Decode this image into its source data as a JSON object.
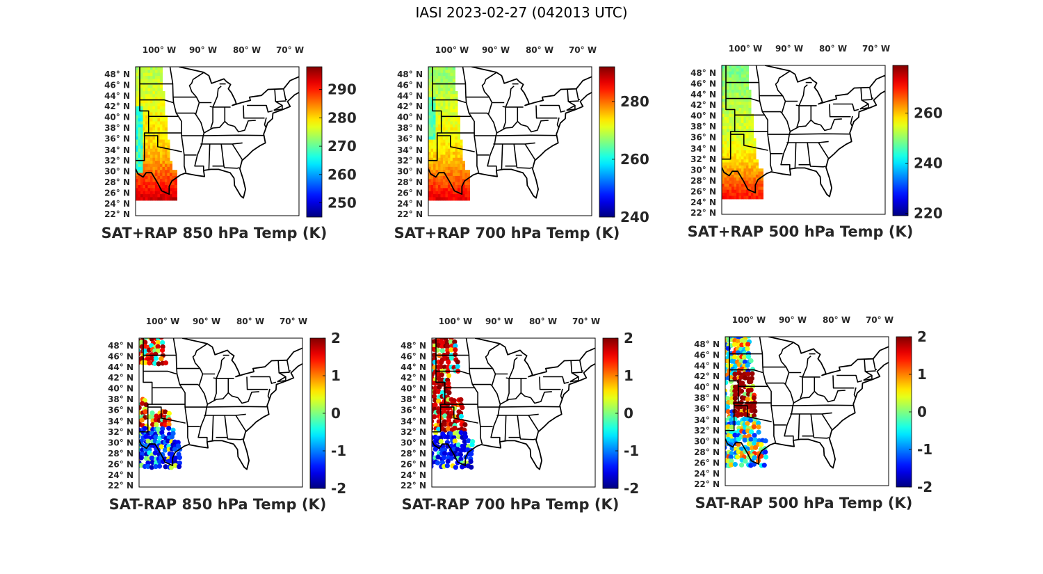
{
  "title": "IASI 2023-02-27 (042013 UTC)",
  "lon_labels": [
    "100°W",
    "90°W",
    "80°W",
    "70°W"
  ],
  "lat_labels": [
    "48°N",
    "46°N",
    "44°N",
    "42°N",
    "40°N",
    "38°N",
    "36°N",
    "34°N",
    "32°N",
    "30°N",
    "28°N",
    "26°N",
    "24°N",
    "22°N"
  ],
  "map_extent": {
    "lon": [
      -105,
      -68
    ],
    "lat": [
      22,
      49
    ]
  },
  "colormap": "jet",
  "panels": [
    {
      "caption": "SAT+RAP 850 hPa Temp (K)",
      "kind": "temp",
      "clim": [
        245,
        298
      ],
      "ticks": [
        "250",
        "260",
        "270",
        "280",
        "290"
      ],
      "tick_values": [
        250,
        260,
        270,
        280,
        290
      ]
    },
    {
      "caption": "SAT+RAP 700 hPa Temp (K)",
      "kind": "temp",
      "clim": [
        240,
        292
      ],
      "ticks": [
        "240",
        "260",
        "280"
      ],
      "tick_values": [
        240,
        260,
        280
      ]
    },
    {
      "caption": "SAT+RAP 500 hPa Temp (K)",
      "kind": "temp",
      "clim": [
        219,
        279
      ],
      "ticks": [
        "220",
        "240",
        "260"
      ],
      "tick_values": [
        220,
        240,
        260
      ]
    },
    {
      "caption": "SAT-RAP 850 hPa Temp (K)",
      "kind": "diff",
      "clim": [
        -2,
        2
      ],
      "ticks": [
        "-2",
        "-1",
        "0",
        "1",
        "2"
      ],
      "tick_values": [
        -2,
        -1,
        0,
        1,
        2
      ]
    },
    {
      "caption": "SAT-RAP 700 hPa Temp (K)",
      "kind": "diff",
      "clim": [
        -2,
        2
      ],
      "ticks": [
        "-2",
        "-1",
        "0",
        "1",
        "2"
      ],
      "tick_values": [
        -2,
        -1,
        0,
        1,
        2
      ]
    },
    {
      "caption": "SAT-RAP 500 hPa Temp (K)",
      "kind": "diff",
      "clim": [
        -2,
        2
      ],
      "ticks": [
        "-2",
        "-1",
        "0",
        "1",
        "2"
      ],
      "tick_values": [
        -2,
        -1,
        0,
        1,
        2
      ]
    }
  ]
}
